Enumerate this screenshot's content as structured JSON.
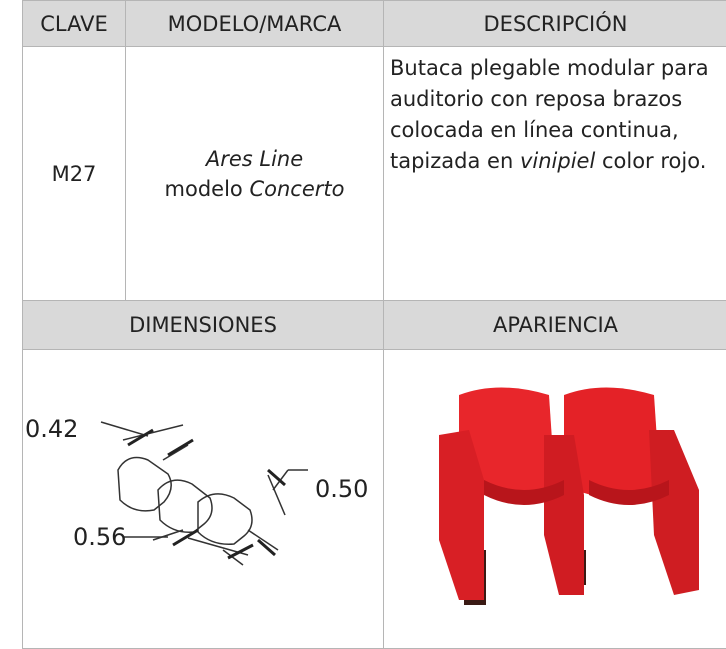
{
  "table": {
    "headers": [
      "CLAVE",
      "MODELO/MARCA",
      "DESCRIPCIÓN"
    ],
    "row": {
      "clave": "M27",
      "modelo": [
        "Ares Line",
        "modelo",
        "Concerto"
      ],
      "descripcion": [
        "Butaca plegable modular para auditorio con reposa brazos colocada en línea continua, tapizada en",
        "vinipiel",
        "color rojo."
      ]
    },
    "headers2": [
      "DIMENSIONES",
      "APARIENCIA"
    ],
    "dimensions": [
      "0.42",
      "0.50",
      "0.56"
    ]
  }
}
